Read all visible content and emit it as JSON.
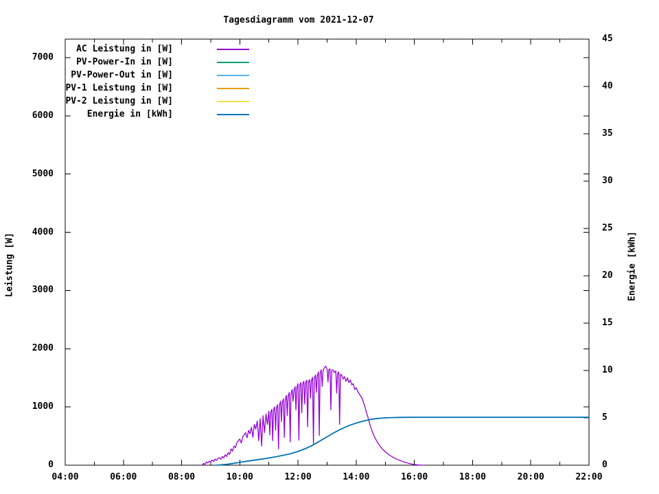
{
  "title": "Tagesdiagramm vom 2021-12-07",
  "axes": {
    "x": {
      "tick_labels": [
        "04:00",
        "06:00",
        "08:00",
        "10:00",
        "12:00",
        "14:00",
        "16:00",
        "18:00",
        "20:00",
        "22:00"
      ],
      "range_hours": [
        4,
        22
      ],
      "minor_tick_every_hours": 1
    },
    "y_left": {
      "label": "Leistung [W]",
      "tick_values": [
        0,
        1000,
        2000,
        3000,
        4000,
        5000,
        6000,
        7000
      ],
      "range": [
        0,
        7318
      ]
    },
    "y_right": {
      "label": "Energie [kWh]",
      "tick_values": [
        0,
        5,
        10,
        15,
        20,
        25,
        30,
        35,
        40,
        45
      ],
      "range": [
        0,
        45
      ]
    }
  },
  "chart_data": {
    "type": "line",
    "title": "Tagesdiagramm vom 2021-12-07",
    "xlabel": "",
    "ylabel_left": "Leistung [W]",
    "ylabel_right": "Energie [kWh]",
    "x_unit": "time (HH:MM), decimal hours in points",
    "x_range": [
      4,
      22
    ],
    "y_left_range": [
      0,
      7318
    ],
    "y_right_range": [
      0,
      45
    ],
    "grid": false,
    "legend_position": "top-left inside plot",
    "series": [
      {
        "name": "AC Leistung in [W]",
        "color": "#9400d3",
        "y_axis": "left",
        "visible_in_plot": true,
        "points": [
          [
            8.7,
            0
          ],
          [
            8.75,
            30
          ],
          [
            8.8,
            15
          ],
          [
            8.85,
            55
          ],
          [
            8.9,
            35
          ],
          [
            8.95,
            70
          ],
          [
            9.0,
            55
          ],
          [
            9.05,
            90
          ],
          [
            9.1,
            65
          ],
          [
            9.15,
            105
          ],
          [
            9.2,
            80
          ],
          [
            9.25,
            120
          ],
          [
            9.3,
            130
          ],
          [
            9.35,
            100
          ],
          [
            9.4,
            150
          ],
          [
            9.45,
            125
          ],
          [
            9.5,
            180
          ],
          [
            9.55,
            150
          ],
          [
            9.6,
            215
          ],
          [
            9.65,
            185
          ],
          [
            9.7,
            280
          ],
          [
            9.75,
            240
          ],
          [
            9.8,
            330
          ],
          [
            9.85,
            300
          ],
          [
            9.9,
            390
          ],
          [
            9.95,
            420
          ],
          [
            10.0,
            450
          ],
          [
            10.05,
            380
          ],
          [
            10.1,
            490
          ],
          [
            10.15,
            520
          ],
          [
            10.2,
            560
          ],
          [
            10.25,
            470
          ],
          [
            10.3,
            600
          ],
          [
            10.35,
            540
          ],
          [
            10.4,
            650
          ],
          [
            10.45,
            480
          ],
          [
            10.5,
            700
          ],
          [
            10.55,
            620
          ],
          [
            10.6,
            760
          ],
          [
            10.65,
            420
          ],
          [
            10.7,
            800
          ],
          [
            10.75,
            330
          ],
          [
            10.8,
            850
          ],
          [
            10.85,
            560
          ],
          [
            10.9,
            880
          ],
          [
            10.95,
            700
          ],
          [
            11.0,
            930
          ],
          [
            11.03,
            520
          ],
          [
            11.06,
            900
          ],
          [
            11.1,
            960
          ],
          [
            11.13,
            420
          ],
          [
            11.16,
            950
          ],
          [
            11.2,
            1000
          ],
          [
            11.23,
            600
          ],
          [
            11.26,
            980
          ],
          [
            11.3,
            1040
          ],
          [
            11.33,
            280
          ],
          [
            11.36,
            1020
          ],
          [
            11.4,
            1100
          ],
          [
            11.43,
            750
          ],
          [
            11.46,
            1080
          ],
          [
            11.5,
            1140
          ],
          [
            11.53,
            480
          ],
          [
            11.56,
            1120
          ],
          [
            11.6,
            1200
          ],
          [
            11.63,
            850
          ],
          [
            11.66,
            1180
          ],
          [
            11.7,
            1250
          ],
          [
            11.73,
            400
          ],
          [
            11.76,
            1230
          ],
          [
            11.8,
            1300
          ],
          [
            11.83,
            1100
          ],
          [
            11.86,
            1280
          ],
          [
            11.9,
            1350
          ],
          [
            11.93,
            950
          ],
          [
            11.96,
            1330
          ],
          [
            12.0,
            1400
          ],
          [
            12.03,
            430
          ],
          [
            12.06,
            1380
          ],
          [
            12.1,
            1420
          ],
          [
            12.13,
            900
          ],
          [
            12.16,
            1400
          ],
          [
            12.2,
            1440
          ],
          [
            12.23,
            1050
          ],
          [
            12.26,
            1420
          ],
          [
            12.3,
            1460
          ],
          [
            12.33,
            660
          ],
          [
            12.36,
            1440
          ],
          [
            12.4,
            1470
          ],
          [
            12.43,
            1150
          ],
          [
            12.46,
            1450
          ],
          [
            12.5,
            1510
          ],
          [
            12.53,
            350
          ],
          [
            12.56,
            1490
          ],
          [
            12.6,
            1550
          ],
          [
            12.63,
            1250
          ],
          [
            12.66,
            1530
          ],
          [
            12.7,
            1600
          ],
          [
            12.73,
            510
          ],
          [
            12.76,
            1580
          ],
          [
            12.8,
            1640
          ],
          [
            12.83,
            1350
          ],
          [
            12.86,
            1620
          ],
          [
            12.9,
            1670
          ],
          [
            12.95,
            1700
          ],
          [
            13.0,
            1650
          ],
          [
            13.03,
            1430
          ],
          [
            13.06,
            1640
          ],
          [
            13.1,
            1655
          ],
          [
            13.13,
            950
          ],
          [
            13.16,
            1630
          ],
          [
            13.2,
            1640
          ],
          [
            13.25,
            1590
          ],
          [
            13.3,
            1620
          ],
          [
            13.33,
            1240
          ],
          [
            13.36,
            1580
          ],
          [
            13.4,
            1600
          ],
          [
            13.43,
            700
          ],
          [
            13.46,
            1560
          ],
          [
            13.5,
            1550
          ],
          [
            13.55,
            1480
          ],
          [
            13.6,
            1520
          ],
          [
            13.65,
            1440
          ],
          [
            13.7,
            1500
          ],
          [
            13.75,
            1420
          ],
          [
            13.8,
            1460
          ],
          [
            13.85,
            1380
          ],
          [
            13.9,
            1400
          ],
          [
            13.95,
            1300
          ],
          [
            14.0,
            1330
          ],
          [
            14.05,
            1270
          ],
          [
            14.1,
            1230
          ],
          [
            14.15,
            1190
          ],
          [
            14.2,
            1150
          ],
          [
            14.25,
            1080
          ],
          [
            14.3,
            1000
          ],
          [
            14.35,
            910
          ],
          [
            14.4,
            830
          ],
          [
            14.45,
            740
          ],
          [
            14.5,
            650
          ],
          [
            14.55,
            580
          ],
          [
            14.6,
            520
          ],
          [
            14.65,
            465
          ],
          [
            14.7,
            420
          ],
          [
            14.75,
            378
          ],
          [
            14.8,
            340
          ],
          [
            14.85,
            308
          ],
          [
            14.9,
            280
          ],
          [
            14.95,
            253
          ],
          [
            15.0,
            230
          ],
          [
            15.05,
            208
          ],
          [
            15.1,
            188
          ],
          [
            15.15,
            170
          ],
          [
            15.2,
            155
          ],
          [
            15.25,
            140
          ],
          [
            15.3,
            126
          ],
          [
            15.35,
            114
          ],
          [
            15.4,
            103
          ],
          [
            15.45,
            92
          ],
          [
            15.5,
            82
          ],
          [
            15.55,
            72
          ],
          [
            15.6,
            63
          ],
          [
            15.65,
            55
          ],
          [
            15.7,
            47
          ],
          [
            15.75,
            40
          ],
          [
            15.8,
            33
          ],
          [
            15.85,
            27
          ],
          [
            15.9,
            21
          ],
          [
            15.95,
            16
          ],
          [
            16.0,
            12
          ],
          [
            16.05,
            9
          ],
          [
            16.1,
            6
          ],
          [
            16.15,
            4
          ],
          [
            16.2,
            2
          ],
          [
            16.25,
            1
          ],
          [
            16.3,
            0
          ]
        ]
      },
      {
        "name": "PV-Power-In in [W]",
        "color": "#009e73",
        "y_axis": "left",
        "visible_in_plot": false,
        "points": []
      },
      {
        "name": "PV-Power-Out in [W]",
        "color": "#56b4e9",
        "y_axis": "left",
        "visible_in_plot": false,
        "points": []
      },
      {
        "name": "PV-1 Leistung in [W]",
        "color": "#e69f00",
        "y_axis": "left",
        "visible_in_plot": false,
        "points": []
      },
      {
        "name": "PV-2 Leistung in [W]",
        "color": "#f0e442",
        "y_axis": "left",
        "visible_in_plot": false,
        "points": []
      },
      {
        "name": "Energie in [kWh]",
        "color": "#0072b2",
        "y_axis": "right",
        "visible_in_plot": true,
        "points": [
          [
            9.2,
            0
          ],
          [
            9.4,
            0.05
          ],
          [
            9.6,
            0.11
          ],
          [
            9.8,
            0.2
          ],
          [
            10.0,
            0.3
          ],
          [
            10.25,
            0.42
          ],
          [
            10.5,
            0.53
          ],
          [
            10.75,
            0.64
          ],
          [
            11.0,
            0.76
          ],
          [
            11.25,
            0.9
          ],
          [
            11.5,
            1.05
          ],
          [
            11.75,
            1.22
          ],
          [
            12.0,
            1.45
          ],
          [
            12.25,
            1.75
          ],
          [
            12.5,
            2.1
          ],
          [
            12.75,
            2.55
          ],
          [
            13.0,
            3.0
          ],
          [
            13.25,
            3.45
          ],
          [
            13.5,
            3.85
          ],
          [
            13.75,
            4.18
          ],
          [
            14.0,
            4.45
          ],
          [
            14.25,
            4.67
          ],
          [
            14.5,
            4.84
          ],
          [
            14.75,
            4.94
          ],
          [
            15.0,
            5.0
          ],
          [
            15.25,
            5.03
          ],
          [
            15.5,
            5.05
          ],
          [
            16.0,
            5.06
          ],
          [
            17.0,
            5.06
          ],
          [
            18.0,
            5.06
          ],
          [
            19.0,
            5.06
          ],
          [
            20.0,
            5.06
          ],
          [
            21.0,
            5.06
          ],
          [
            22.0,
            5.06
          ]
        ]
      }
    ]
  }
}
